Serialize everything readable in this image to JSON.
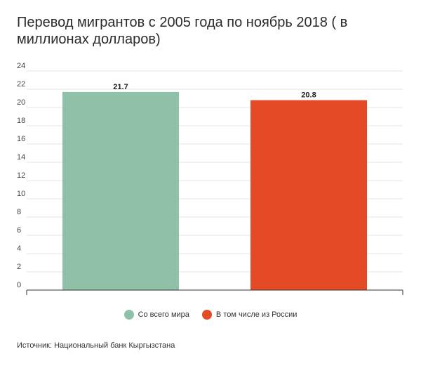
{
  "header": {
    "title": "Перевод мигрантов с 2005 года по ноябрь 2018 ( в миллионах долларов)"
  },
  "chart_data": {
    "type": "bar",
    "title": "Перевод мигрантов с 2005 года по ноябрь 2018 ( в миллионах долларов)",
    "xlabel": "",
    "ylabel": "",
    "ylim": [
      0,
      24
    ],
    "yticks": [
      "0",
      "2",
      "4",
      "6",
      "8",
      "10",
      "12",
      "14",
      "16",
      "18",
      "20",
      "22",
      "24"
    ],
    "grid": true,
    "legend_position": "bottom",
    "series": [
      {
        "name": "Со всего мира",
        "value": 21.7,
        "label": "21.7",
        "color": "#8fc1a9"
      },
      {
        "name": "В том числе из России",
        "value": 20.8,
        "label": "20.8",
        "color": "#e44a25"
      }
    ]
  },
  "footer": {
    "source": "Источник: Национальный банк Кыргызстана"
  }
}
